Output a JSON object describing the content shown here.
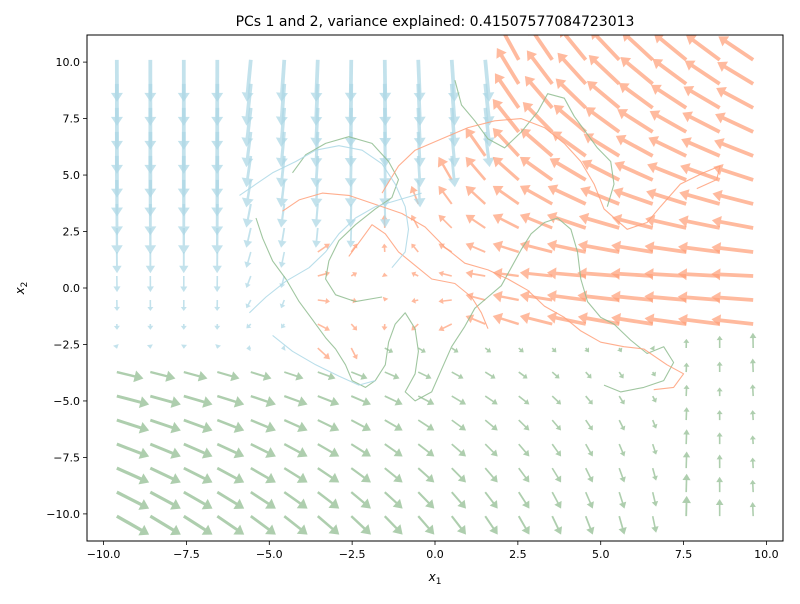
{
  "chart_data": {
    "type": "quiver",
    "title": "PCs 1 and 2, variance explained: 0.41507577084723013",
    "xlabel": "x",
    "xlabel_sub": "1",
    "ylabel": "x",
    "ylabel_sub": "2",
    "xlim": [
      -10.5,
      10.5
    ],
    "ylim": [
      -11.2,
      11.2
    ],
    "xticks": [
      {
        "value": -10.0,
        "label": "−10.0"
      },
      {
        "value": -7.5,
        "label": "−7.5"
      },
      {
        "value": -5.0,
        "label": "−5.0"
      },
      {
        "value": -2.5,
        "label": "−2.5"
      },
      {
        "value": 0.0,
        "label": "0.0"
      },
      {
        "value": 2.5,
        "label": "2.5"
      },
      {
        "value": 5.0,
        "label": "5.0"
      },
      {
        "value": 7.5,
        "label": "7.5"
      },
      {
        "value": 10.0,
        "label": "10.0"
      }
    ],
    "yticks": [
      {
        "value": -10.0,
        "label": "−10.0"
      },
      {
        "value": -7.5,
        "label": "−7.5"
      },
      {
        "value": -5.0,
        "label": "−5.0"
      },
      {
        "value": -2.5,
        "label": "−2.5"
      },
      {
        "value": 0.0,
        "label": "0.0"
      },
      {
        "value": 2.5,
        "label": "2.5"
      },
      {
        "value": 5.0,
        "label": "5.0"
      },
      {
        "value": 7.5,
        "label": "7.5"
      },
      {
        "value": 10.0,
        "label": "10.0"
      }
    ],
    "grid": false,
    "vector_field": {
      "x_range": [
        -9.6,
        9.6
      ],
      "y_range": [
        -10.1,
        10.1
      ],
      "grid_n": 20,
      "regions": [
        {
          "name": "blue",
          "color": "#add8e6",
          "dominant": "top-left"
        },
        {
          "name": "red",
          "color": "#ffa07a",
          "dominant": "top-right"
        },
        {
          "name": "green",
          "color": "#8fbc8f",
          "dominant": "bottom"
        }
      ]
    },
    "trajectories": [
      {
        "color": "#8fbc8f",
        "points": [
          [
            -5.4,
            3.1
          ],
          [
            -5.2,
            2.2
          ],
          [
            -4.9,
            1.2
          ],
          [
            -4.5,
            0.4
          ],
          [
            -4.1,
            -0.6
          ],
          [
            -3.7,
            -1.4
          ],
          [
            -3.3,
            -2.2
          ],
          [
            -3.0,
            -2.7
          ],
          [
            -2.7,
            -3.4
          ],
          [
            -2.5,
            -4.1
          ],
          [
            -2.1,
            -4.4
          ],
          [
            -1.8,
            -4.1
          ],
          [
            -1.5,
            -3.4
          ],
          [
            -1.4,
            -2.4
          ],
          [
            -1.2,
            -1.6
          ],
          [
            -0.9,
            -1.1
          ],
          [
            -0.6,
            -1.8
          ],
          [
            -0.5,
            -2.8
          ],
          [
            -0.6,
            -3.8
          ],
          [
            -0.9,
            -4.6
          ],
          [
            -0.6,
            -5.0
          ],
          [
            -0.1,
            -4.6
          ],
          [
            0.2,
            -3.6
          ],
          [
            0.5,
            -2.6
          ],
          [
            0.9,
            -1.7
          ],
          [
            1.2,
            -0.9
          ],
          [
            1.6,
            -0.4
          ],
          [
            2.0,
            0.1
          ],
          [
            2.3,
            0.9
          ],
          [
            2.6,
            1.7
          ],
          [
            2.9,
            2.4
          ],
          [
            3.3,
            2.9
          ],
          [
            3.7,
            3.1
          ],
          [
            4.1,
            2.6
          ],
          [
            4.3,
            1.6
          ],
          [
            4.4,
            0.4
          ],
          [
            4.6,
            -0.6
          ],
          [
            5.0,
            -1.3
          ],
          [
            5.4,
            -1.6
          ],
          [
            5.9,
            -2.3
          ],
          [
            6.4,
            -2.9
          ],
          [
            6.9,
            -2.6
          ],
          [
            7.2,
            -3.3
          ],
          [
            6.9,
            -4.1
          ],
          [
            6.3,
            -4.4
          ],
          [
            5.6,
            -4.6
          ],
          [
            5.1,
            -4.3
          ]
        ]
      },
      {
        "color": "#8fbc8f",
        "points": [
          [
            -4.3,
            5.1
          ],
          [
            -3.9,
            5.9
          ],
          [
            -3.3,
            6.4
          ],
          [
            -2.6,
            6.7
          ],
          [
            -1.9,
            6.4
          ],
          [
            -1.4,
            5.6
          ],
          [
            -1.1,
            4.8
          ],
          [
            -1.3,
            4.0
          ],
          [
            -1.8,
            3.5
          ],
          [
            -2.4,
            2.8
          ],
          [
            -2.9,
            2.1
          ],
          [
            -3.2,
            1.2
          ],
          [
            -3.3,
            0.4
          ],
          [
            -3.0,
            -0.3
          ],
          [
            -2.4,
            -0.6
          ],
          [
            -1.6,
            -0.4
          ]
        ]
      },
      {
        "color": "#8fbc8f",
        "points": [
          [
            0.6,
            9.2
          ],
          [
            0.8,
            8.1
          ],
          [
            1.2,
            7.4
          ],
          [
            1.6,
            6.6
          ],
          [
            2.1,
            6.2
          ],
          [
            2.6,
            6.9
          ],
          [
            3.1,
            7.8
          ],
          [
            3.4,
            8.6
          ],
          [
            3.9,
            8.4
          ],
          [
            4.2,
            7.6
          ],
          [
            4.6,
            6.8
          ],
          [
            4.9,
            6.2
          ],
          [
            5.3,
            5.6
          ],
          [
            5.4,
            4.6
          ],
          [
            5.2,
            3.6
          ]
        ]
      },
      {
        "color": "#ffa07a",
        "points": [
          [
            -4.6,
            3.4
          ],
          [
            -4.1,
            3.9
          ],
          [
            -3.4,
            4.2
          ],
          [
            -2.6,
            4.1
          ],
          [
            -1.8,
            3.7
          ],
          [
            -1.0,
            3.3
          ],
          [
            -0.3,
            2.7
          ],
          [
            0.3,
            1.8
          ],
          [
            0.9,
            1.1
          ],
          [
            1.6,
            0.8
          ],
          [
            2.2,
            0.4
          ],
          [
            2.8,
            -0.1
          ],
          [
            3.3,
            -0.8
          ],
          [
            3.9,
            -1.3
          ],
          [
            4.4,
            -1.9
          ],
          [
            5.0,
            -2.4
          ],
          [
            5.7,
            -2.6
          ],
          [
            6.3,
            -2.7
          ],
          [
            7.0,
            -3.4
          ],
          [
            7.5,
            -3.8
          ],
          [
            7.2,
            -4.4
          ],
          [
            6.6,
            -4.5
          ]
        ]
      },
      {
        "color": "#ffa07a",
        "points": [
          [
            -1.6,
            4.2
          ],
          [
            -1.1,
            5.4
          ],
          [
            -0.6,
            6.1
          ],
          [
            0.2,
            6.6
          ],
          [
            1.0,
            7.1
          ],
          [
            1.8,
            7.4
          ],
          [
            2.6,
            7.5
          ],
          [
            3.3,
            7.1
          ],
          [
            3.9,
            6.4
          ],
          [
            4.4,
            5.6
          ],
          [
            4.8,
            4.6
          ],
          [
            5.1,
            3.5
          ],
          [
            5.8,
            2.6
          ],
          [
            6.4,
            2.9
          ],
          [
            6.8,
            3.6
          ],
          [
            7.4,
            4.6
          ],
          [
            8.1,
            5.1
          ],
          [
            8.6,
            5.4
          ],
          [
            8.5,
            4.8
          ],
          [
            7.9,
            4.4
          ]
        ]
      },
      {
        "color": "#ffa07a",
        "points": [
          [
            -2.6,
            1.4
          ],
          [
            -2.2,
            2.2
          ],
          [
            -1.9,
            2.8
          ],
          [
            -1.5,
            2.4
          ],
          [
            -1.1,
            1.6
          ],
          [
            -0.6,
            1.0
          ],
          [
            -0.1,
            0.4
          ],
          [
            0.6,
            0.2
          ],
          [
            1.1,
            -0.4
          ],
          [
            1.4,
            -1.1
          ],
          [
            1.6,
            -1.8
          ]
        ]
      },
      {
        "color": "#add8e6",
        "points": [
          [
            -5.9,
            4.1
          ],
          [
            -5.4,
            4.6
          ],
          [
            -4.9,
            5.1
          ],
          [
            -4.2,
            5.6
          ],
          [
            -3.6,
            6.1
          ],
          [
            -2.9,
            6.3
          ],
          [
            -2.2,
            6.1
          ],
          [
            -1.6,
            5.5
          ],
          [
            -1.2,
            4.6
          ],
          [
            -0.9,
            3.6
          ],
          [
            -0.8,
            2.6
          ],
          [
            -0.9,
            1.6
          ],
          [
            -1.3,
            0.9
          ]
        ]
      },
      {
        "color": "#add8e6",
        "points": [
          [
            -5.6,
            -1.1
          ],
          [
            -5.1,
            -0.4
          ],
          [
            -4.5,
            0.3
          ],
          [
            -3.8,
            0.9
          ],
          [
            -3.3,
            1.6
          ],
          [
            -2.9,
            2.4
          ],
          [
            -2.4,
            3.1
          ],
          [
            -1.8,
            3.6
          ],
          [
            -1.1,
            3.9
          ],
          [
            -0.4,
            4.2
          ]
        ]
      },
      {
        "color": "#add8e6",
        "points": [
          [
            -4.9,
            -2.1
          ],
          [
            -4.3,
            -2.8
          ],
          [
            -3.6,
            -3.4
          ],
          [
            -2.9,
            -3.9
          ],
          [
            -2.3,
            -4.3
          ],
          [
            -1.8,
            -4.1
          ]
        ]
      }
    ]
  }
}
